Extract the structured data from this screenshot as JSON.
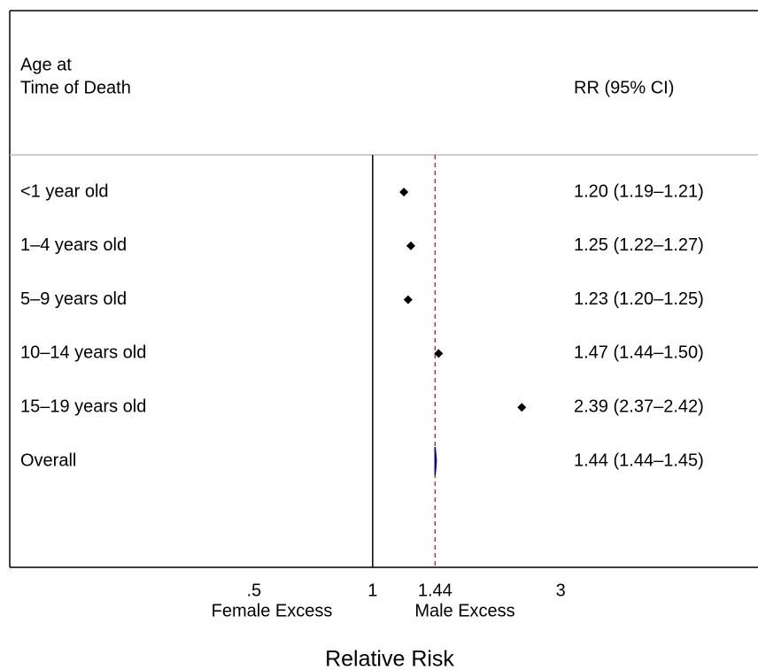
{
  "chart_data": {
    "type": "forest",
    "row_header": [
      "Age at",
      "Time of Death"
    ],
    "value_header": "RR (95% CI)",
    "categories": [
      "<1 year old",
      "1–4 years old",
      "5–9 years old",
      "10–14 years old",
      "15–19 years old"
    ],
    "values": [
      1.2,
      1.25,
      1.23,
      1.47,
      2.39
    ],
    "ci_low": [
      1.19,
      1.22,
      1.2,
      1.44,
      2.37
    ],
    "ci_high": [
      1.21,
      1.27,
      1.25,
      1.5,
      2.42
    ],
    "value_labels": [
      "1.20 (1.19–1.21)",
      "1.25 (1.22–1.27)",
      "1.23 (1.20–1.25)",
      "1.47 (1.44–1.50)",
      "2.39 (2.37–2.42)"
    ],
    "color": "#000000",
    "overall": {
      "label": "Overall",
      "value": 1.44,
      "ci_low": 1.44,
      "ci_high": 1.45,
      "value_label": "1.44 (1.44–1.45)",
      "color": "#000080"
    },
    "log_x": true,
    "xlim": [
      0.12,
      9.5
    ],
    "xticks": [
      {
        "value": 0.5,
        "label": ".5"
      },
      1,
      1.44,
      3
    ],
    "null_line": 1,
    "ref_line": 1.44,
    "ref_line_color": "#b22222",
    "left_label": "Female Excess",
    "right_label": "Male Excess",
    "x_label": "Relative Risk"
  }
}
